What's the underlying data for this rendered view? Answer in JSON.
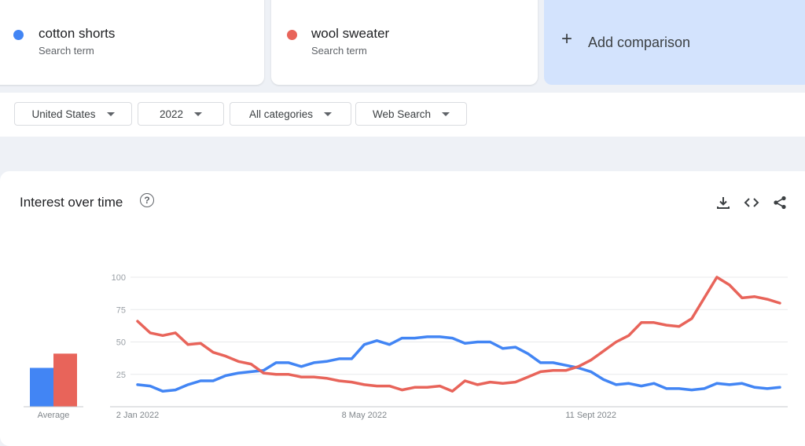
{
  "terms": [
    {
      "name": "cotton shorts",
      "subtitle": "Search term",
      "color": "#4285f4"
    },
    {
      "name": "wool sweater",
      "subtitle": "Search term",
      "color": "#e8645a"
    }
  ],
  "add_comparison": {
    "label": "Add comparison",
    "icon": "plus-icon"
  },
  "filters": {
    "region": "United States",
    "period": "2022",
    "category": "All categories",
    "search_type": "Web Search"
  },
  "chart_card": {
    "title": "Interest over time",
    "actions": [
      "download-icon",
      "embed-code-icon",
      "share-icon"
    ]
  },
  "chart_data": {
    "type": "line",
    "title": "Interest over time",
    "y_ticks": [
      25,
      50,
      75,
      100
    ],
    "ylim": [
      0,
      100
    ],
    "x_tick_labels": [
      {
        "label": "2 Jan 2022",
        "index": 0
      },
      {
        "label": "8 May 2022",
        "index": 18
      },
      {
        "label": "11 Sept 2022",
        "index": 36
      }
    ],
    "grid": true,
    "series": [
      {
        "name": "cotton shorts",
        "color": "#4285f4",
        "values": [
          17,
          16,
          12,
          13,
          17,
          20,
          20,
          24,
          26,
          27,
          28,
          34,
          34,
          31,
          34,
          35,
          37,
          37,
          48,
          51,
          48,
          53,
          53,
          54,
          54,
          53,
          49,
          50,
          50,
          45,
          46,
          41,
          34,
          34,
          32,
          30,
          27,
          21,
          17,
          18,
          16,
          18,
          14,
          14,
          13,
          14,
          18,
          17,
          18,
          15,
          14,
          15
        ]
      },
      {
        "name": "wool sweater",
        "color": "#e8645a",
        "values": [
          66,
          57,
          55,
          57,
          48,
          49,
          42,
          39,
          35,
          33,
          26,
          25,
          25,
          23,
          23,
          22,
          20,
          19,
          17,
          16,
          16,
          13,
          15,
          15,
          16,
          12,
          20,
          17,
          19,
          18,
          19,
          23,
          27,
          28,
          28,
          31,
          36,
          43,
          50,
          55,
          65,
          65,
          63,
          62,
          68,
          84,
          100,
          94,
          84,
          85,
          83,
          80
        ]
      }
    ],
    "average": {
      "label": "Average",
      "values": [
        {
          "name": "cotton shorts",
          "value": 30
        },
        {
          "name": "wool sweater",
          "value": 41
        }
      ]
    }
  }
}
